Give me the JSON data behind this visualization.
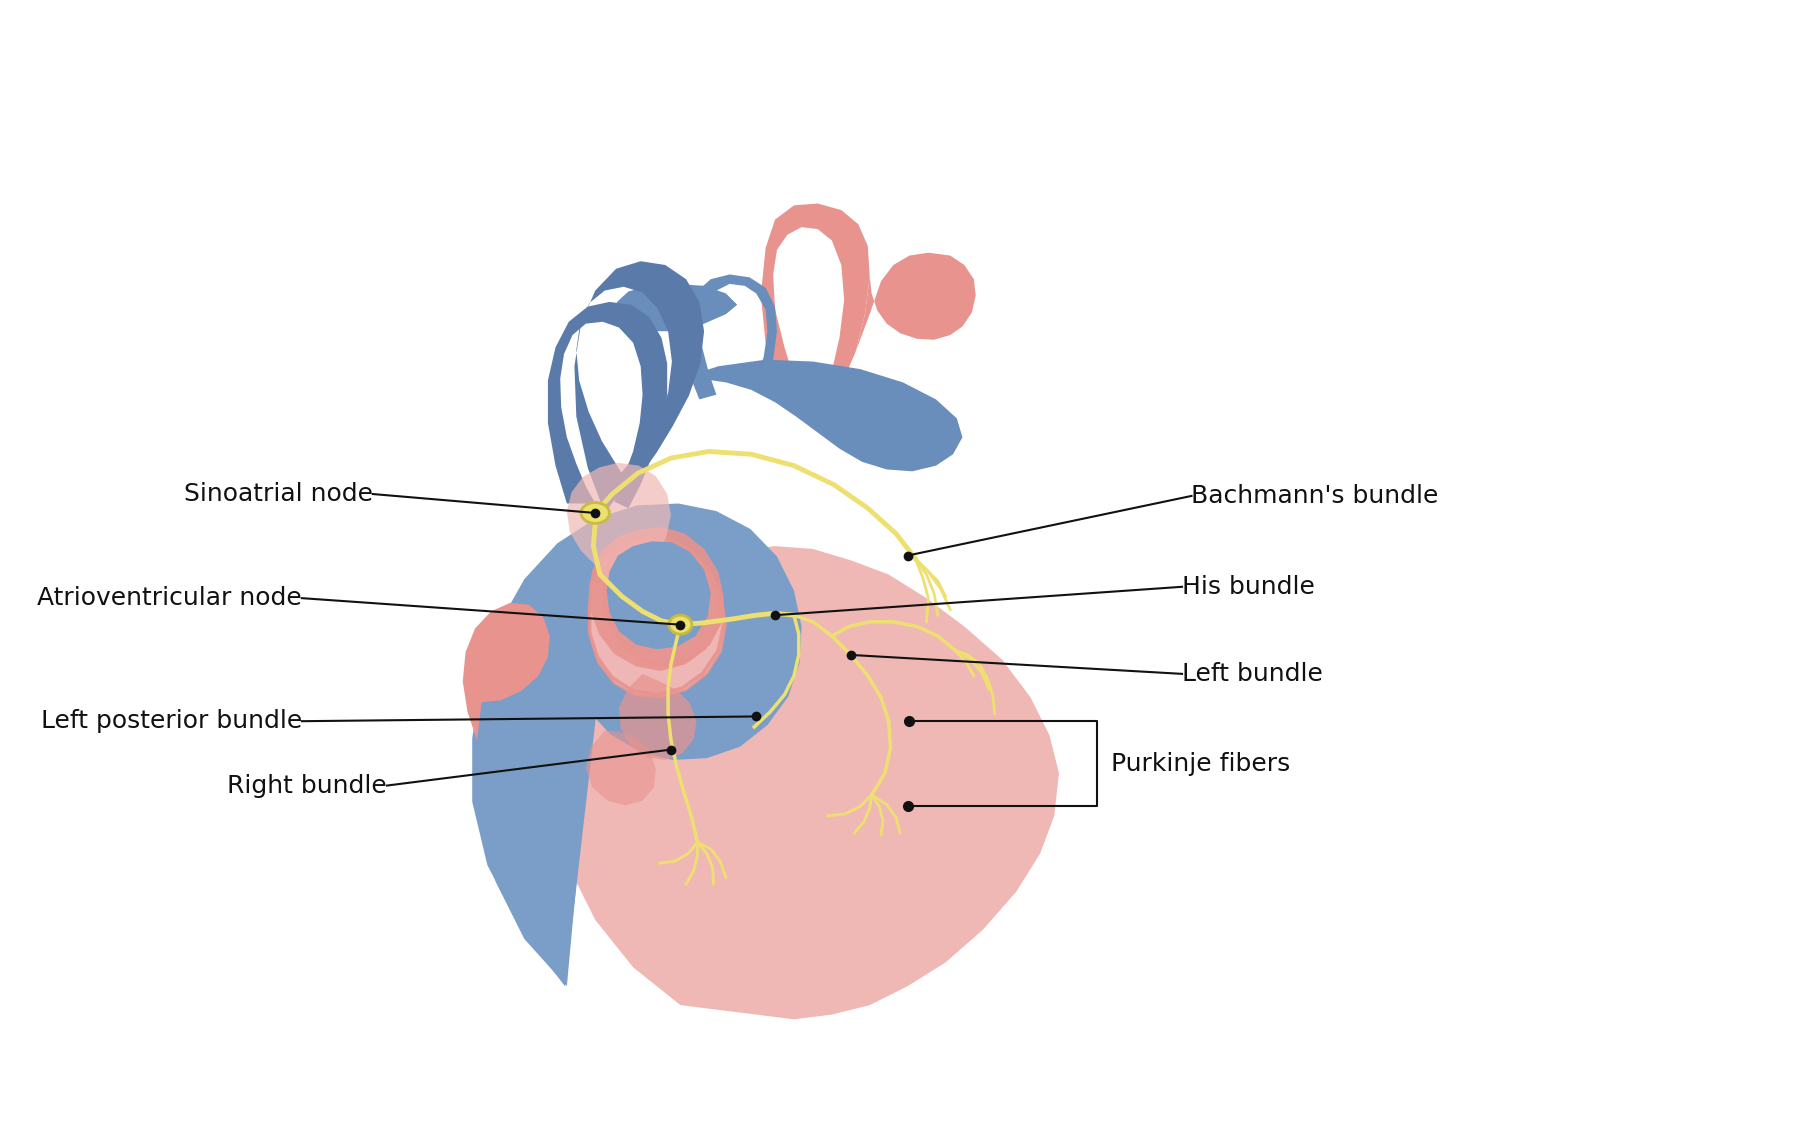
{
  "bg_color": "#ffffff",
  "pink_outer": "#D4706A",
  "pink_main": "#E8938E",
  "pink_light": "#F0B8B5",
  "pink_pale": "#F5CFCC",
  "pink_inner": "#F2C8C5",
  "blue_main": "#7B9EC8",
  "blue_dark": "#5A7BAA",
  "blue_medium": "#6A8EBB",
  "blue_light": "#A0BDD8",
  "yellow_conduct": "#EEE070",
  "yellow_dark": "#C8BC40",
  "label_color": "#111111",
  "line_color": "#111111",
  "dot_color": "#111111",
  "label_fontsize": 18,
  "figsize": [
    18.0,
    11.31
  ],
  "dpi": 100,
  "labels": {
    "bachmanns_bundle": "Bachmann's bundle",
    "sinoatrial_node": "Sinoatrial node",
    "atrioventricular_node": "Atrioventricular node",
    "his_bundle": "His bundle",
    "left_bundle": "Left bundle",
    "left_posterior_bundle": "Left posterior bundle",
    "right_bundle": "Right bundle",
    "purkinje_fibers": "Purkinje fibers"
  }
}
